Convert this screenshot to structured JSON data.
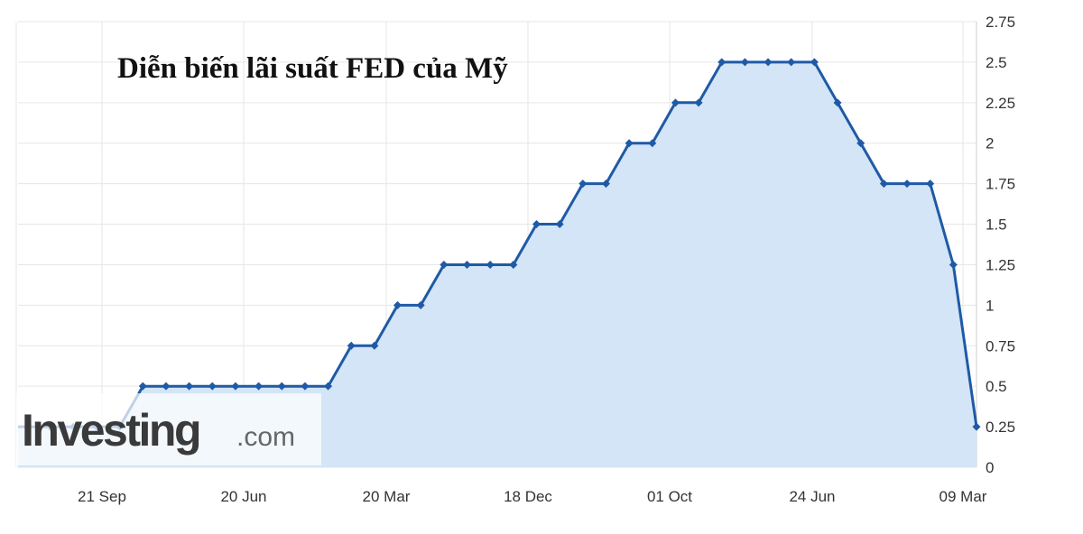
{
  "chart_data": {
    "type": "area",
    "title": "Diễn biến lãi suất FED của Mỹ",
    "xlabel": "",
    "ylabel": "",
    "x_tick_labels": [
      "21 Sep",
      "20 Jun",
      "20 Mar",
      "18 Dec",
      "01 Oct",
      "24 Jun",
      "09 Mar"
    ],
    "y_tick_labels": [
      "0",
      "0.25",
      "0.5",
      "0.75",
      "1",
      "1.25",
      "1.5",
      "1.75",
      "2",
      "2.25",
      "2.5",
      "2.75"
    ],
    "ylim": [
      0,
      2.75
    ],
    "y_axis_side": "right",
    "grid": true,
    "values": [
      0.25,
      0.25,
      0.25,
      0.25,
      0.25,
      0.5,
      0.5,
      0.5,
      0.5,
      0.5,
      0.5,
      0.5,
      0.5,
      0.5,
      0.75,
      0.75,
      1,
      1,
      1.25,
      1.25,
      1.25,
      1.25,
      1.5,
      1.5,
      1.75,
      1.75,
      2,
      2,
      2.25,
      2.25,
      2.5,
      2.5,
      2.5,
      2.5,
      2.5,
      2.25,
      2,
      1.75,
      1.75,
      1.75,
      1.25,
      0.25
    ],
    "colors": {
      "line": "#1f5aa6",
      "fill": "#d3e5f6",
      "grid": "#e6e6e6"
    }
  },
  "watermark": {
    "brand": "Investing",
    "suffix": ".com"
  }
}
